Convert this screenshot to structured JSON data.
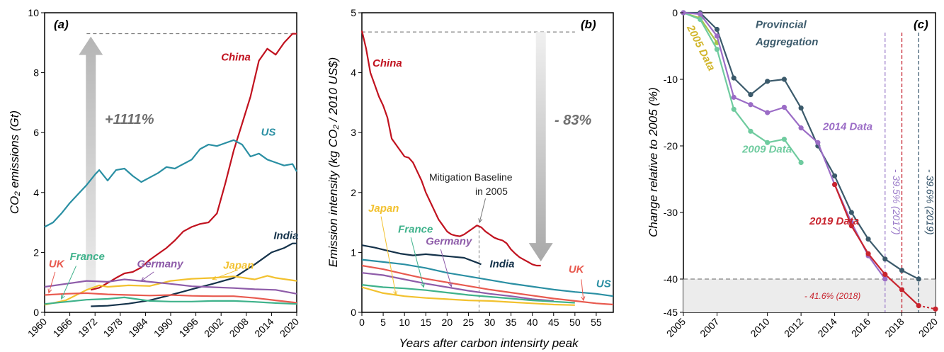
{
  "chart_data": [
    {
      "panel": "a",
      "type": "line",
      "title": "(a)",
      "xlabel": "",
      "ylabel": "CO₂ emissions (Gt)",
      "xlim": [
        1960,
        2020
      ],
      "ylim": [
        0,
        10
      ],
      "xticks": [
        1960,
        1966,
        1972,
        1978,
        1984,
        1990,
        1996,
        2002,
        2008,
        2014,
        2020
      ],
      "yticks": [
        0,
        2,
        4,
        6,
        8,
        10
      ],
      "annotation": "+1111%",
      "series": [
        {
          "name": "China",
          "color": "#c1121f",
          "x": [
            1971,
            1973,
            1975,
            1977,
            1979,
            1981,
            1983,
            1985,
            1987,
            1989,
            1991,
            1993,
            1995,
            1997,
            1999,
            2001,
            2003,
            2005,
            2007,
            2009,
            2011,
            2013,
            2015,
            2017,
            2019,
            2020
          ],
          "y": [
            0.75,
            0.82,
            0.98,
            1.15,
            1.3,
            1.35,
            1.5,
            1.75,
            1.95,
            2.15,
            2.4,
            2.7,
            2.85,
            2.95,
            3.0,
            3.3,
            4.3,
            5.4,
            6.3,
            7.2,
            8.4,
            8.8,
            8.6,
            9.0,
            9.3,
            9.3
          ]
        },
        {
          "name": "US",
          "color": "#2a8fa3",
          "x": [
            1960,
            1962,
            1964,
            1966,
            1968,
            1970,
            1972,
            1973,
            1975,
            1977,
            1979,
            1981,
            1983,
            1985,
            1987,
            1989,
            1991,
            1993,
            1995,
            1997,
            1999,
            2001,
            2003,
            2005,
            2007,
            2009,
            2011,
            2013,
            2015,
            2017,
            2019,
            2020
          ],
          "y": [
            2.85,
            3.0,
            3.3,
            3.65,
            3.95,
            4.25,
            4.6,
            4.75,
            4.4,
            4.75,
            4.8,
            4.55,
            4.35,
            4.5,
            4.65,
            4.85,
            4.8,
            4.95,
            5.1,
            5.45,
            5.6,
            5.55,
            5.65,
            5.75,
            5.6,
            5.2,
            5.3,
            5.1,
            5.0,
            4.9,
            4.95,
            4.7
          ]
        },
        {
          "name": "India",
          "color": "#14324a",
          "x": [
            1971,
            1975,
            1980,
            1985,
            1990,
            1995,
            2000,
            2005,
            2010,
            2014,
            2017,
            2019,
            2020
          ],
          "y": [
            0.2,
            0.22,
            0.29,
            0.4,
            0.58,
            0.77,
            0.95,
            1.15,
            1.6,
            2.0,
            2.15,
            2.3,
            2.3
          ]
        },
        {
          "name": "Japan",
          "color": "#f2c12e",
          "x": [
            1960,
            1965,
            1970,
            1973,
            1975,
            1980,
            1985,
            1990,
            1995,
            2000,
            2005,
            2010,
            2013,
            2015,
            2020
          ],
          "y": [
            0.25,
            0.4,
            0.75,
            0.9,
            0.85,
            0.9,
            0.88,
            1.05,
            1.12,
            1.15,
            1.2,
            1.1,
            1.22,
            1.15,
            1.05
          ]
        },
        {
          "name": "Germany",
          "color": "#8e5ca9",
          "x": [
            1960,
            1965,
            1970,
            1975,
            1979,
            1985,
            1990,
            1995,
            2000,
            2005,
            2010,
            2015,
            2020
          ],
          "y": [
            0.85,
            0.95,
            1.05,
            1.02,
            1.1,
            1.02,
            0.95,
            0.87,
            0.84,
            0.81,
            0.77,
            0.75,
            0.62
          ]
        },
        {
          "name": "UK",
          "color": "#e85a4f",
          "x": [
            1960,
            1965,
            1970,
            1975,
            1980,
            1985,
            1990,
            1995,
            2000,
            2005,
            2010,
            2015,
            2020
          ],
          "y": [
            0.58,
            0.62,
            0.64,
            0.6,
            0.58,
            0.56,
            0.58,
            0.55,
            0.54,
            0.54,
            0.48,
            0.4,
            0.32
          ]
        },
        {
          "name": "France",
          "color": "#3fb28b",
          "x": [
            1960,
            1965,
            1970,
            1975,
            1979,
            1985,
            1990,
            1995,
            2000,
            2005,
            2010,
            2015,
            2020
          ],
          "y": [
            0.28,
            0.35,
            0.42,
            0.45,
            0.5,
            0.38,
            0.36,
            0.36,
            0.38,
            0.38,
            0.35,
            0.31,
            0.28
          ]
        }
      ]
    },
    {
      "panel": "b",
      "type": "line",
      "title": "(b)",
      "xlabel": "Years after carbon intensirty peak",
      "ylabel": "Emission intensity (kg CO₂ / 2010 US$)",
      "xlim": [
        0,
        59
      ],
      "ylim": [
        0,
        5
      ],
      "xticks": [
        0,
        5,
        10,
        15,
        20,
        25,
        30,
        35,
        40,
        45,
        50,
        55
      ],
      "yticks": [
        0,
        1,
        2,
        3,
        4,
        5
      ],
      "annotation": "- 83%",
      "annotation2": [
        "Mitigation Baseline",
        "in 2005"
      ],
      "series": [
        {
          "name": "China",
          "color": "#c1121f",
          "x": [
            0,
            1,
            2,
            3,
            4,
            5,
            6,
            7,
            8,
            9,
            10,
            11,
            12,
            13,
            14,
            15,
            16,
            17,
            18,
            19,
            20,
            21,
            22,
            23,
            24,
            25,
            26,
            27,
            28,
            29,
            30,
            31,
            32,
            33,
            34,
            35,
            36,
            37,
            38,
            39,
            40,
            41,
            42
          ],
          "y": [
            4.7,
            4.4,
            4.0,
            3.8,
            3.6,
            3.45,
            3.25,
            2.9,
            2.8,
            2.7,
            2.6,
            2.58,
            2.5,
            2.35,
            2.2,
            2.0,
            1.85,
            1.7,
            1.55,
            1.45,
            1.35,
            1.3,
            1.28,
            1.27,
            1.3,
            1.35,
            1.4,
            1.45,
            1.42,
            1.35,
            1.3,
            1.25,
            1.22,
            1.2,
            1.15,
            1.05,
            0.98,
            0.92,
            0.88,
            0.84,
            0.8,
            0.78,
            0.78
          ]
        },
        {
          "name": "India",
          "color": "#14324a",
          "x": [
            0,
            3,
            6,
            9,
            12,
            15,
            18,
            21,
            24,
            27,
            28
          ],
          "y": [
            1.12,
            1.08,
            1.03,
            0.98,
            0.95,
            0.97,
            0.95,
            0.93,
            0.91,
            0.83,
            0.8
          ]
        },
        {
          "name": "US",
          "color": "#2a8fa3",
          "x": [
            0,
            5,
            10,
            15,
            20,
            25,
            30,
            35,
            40,
            45,
            50,
            55,
            59
          ],
          "y": [
            0.88,
            0.84,
            0.8,
            0.74,
            0.66,
            0.6,
            0.54,
            0.48,
            0.43,
            0.38,
            0.34,
            0.31,
            0.27
          ]
        },
        {
          "name": "UK",
          "color": "#e85a4f",
          "x": [
            0,
            5,
            10,
            15,
            20,
            25,
            30,
            35,
            40,
            45,
            50,
            55,
            59
          ],
          "y": [
            0.78,
            0.72,
            0.64,
            0.56,
            0.5,
            0.44,
            0.38,
            0.33,
            0.28,
            0.23,
            0.19,
            0.15,
            0.13
          ]
        },
        {
          "name": "Germany",
          "color": "#8e5ca9",
          "x": [
            0,
            5,
            10,
            15,
            20,
            25,
            30,
            35,
            40,
            45
          ],
          "y": [
            0.66,
            0.62,
            0.55,
            0.48,
            0.42,
            0.36,
            0.31,
            0.27,
            0.22,
            0.19
          ]
        },
        {
          "name": "France",
          "color": "#3fb28b",
          "x": [
            0,
            5,
            10,
            15,
            20,
            25,
            30,
            35,
            40,
            45,
            50
          ],
          "y": [
            0.46,
            0.42,
            0.4,
            0.37,
            0.33,
            0.29,
            0.26,
            0.23,
            0.2,
            0.18,
            0.16
          ]
        },
        {
          "name": "Japan",
          "color": "#f2c12e",
          "x": [
            0,
            5,
            10,
            15,
            20,
            25,
            30,
            35,
            40,
            45,
            50
          ],
          "y": [
            0.42,
            0.32,
            0.27,
            0.24,
            0.22,
            0.2,
            0.19,
            0.17,
            0.15,
            0.13,
            0.12
          ]
        }
      ]
    },
    {
      "panel": "c",
      "type": "line",
      "title": "(c)",
      "xlabel": "",
      "ylabel": "Change relative to 2005 (%)",
      "xlim": [
        2005,
        2020
      ],
      "ylim": [
        -45,
        0
      ],
      "xticks": [
        2005,
        2007,
        2010,
        2012,
        2014,
        2016,
        2018,
        2020
      ],
      "yticks": [
        0,
        -10,
        -20,
        -30,
        -40,
        -45
      ],
      "baseline_y": -40,
      "vlines": [
        {
          "x": 2017,
          "label": "- 39.5% (2017)",
          "color": "#9b7bc9"
        },
        {
          "x": 2018,
          "label": "",
          "color": "#c1121f"
        },
        {
          "x": 2019,
          "label": "- 39.6% (2019)",
          "color": "#2f4f66"
        }
      ],
      "point_label": "- 41.6% (2018)",
      "series": [
        {
          "name": "Provincial Aggregation",
          "color": "#3b5a6b",
          "x": [
            2005,
            2006,
            2007,
            2008,
            2009,
            2010,
            2011,
            2012,
            2013,
            2014,
            2015,
            2016,
            2017,
            2018,
            2019
          ],
          "y": [
            0,
            0,
            -2.5,
            -9.8,
            -12.3,
            -10.3,
            -10.0,
            -14.3,
            -20.0,
            -24.5,
            -30.0,
            -34.0,
            -37.0,
            -38.7,
            -40.0
          ]
        },
        {
          "name": "2005 Data",
          "color": "#a8c44a",
          "x": [
            2005,
            2006,
            2007
          ],
          "y": [
            0,
            -0.8,
            -4.5
          ]
        },
        {
          "name": "2009 Data",
          "color": "#6fcb9f",
          "x": [
            2005,
            2006,
            2007,
            2008,
            2009,
            2010,
            2011,
            2012
          ],
          "y": [
            0,
            -1.0,
            -5.5,
            -14.5,
            -17.8,
            -19.5,
            -19.0,
            -22.5
          ]
        },
        {
          "name": "2014 Data",
          "color": "#9b6cc6",
          "x": [
            2005,
            2006,
            2007,
            2008,
            2009,
            2010,
            2011,
            2012,
            2013,
            2014,
            2015,
            2016,
            2017
          ],
          "y": [
            0,
            -0.2,
            -3.5,
            -12.7,
            -13.8,
            -15.0,
            -14.2,
            -17.3,
            -19.5,
            -25.8,
            -31.5,
            -36.5,
            -40.0
          ]
        },
        {
          "name": "2019 Data",
          "color": "#c8242e",
          "x": [
            2014,
            2015,
            2016,
            2017,
            2018,
            2019
          ],
          "y": [
            -25.8,
            -32.0,
            -36.2,
            -39.3,
            -41.6,
            -44.0
          ],
          "extension_x": [
            2019,
            2020
          ],
          "extension_y": [
            -44.0,
            -44.5
          ]
        }
      ]
    }
  ]
}
